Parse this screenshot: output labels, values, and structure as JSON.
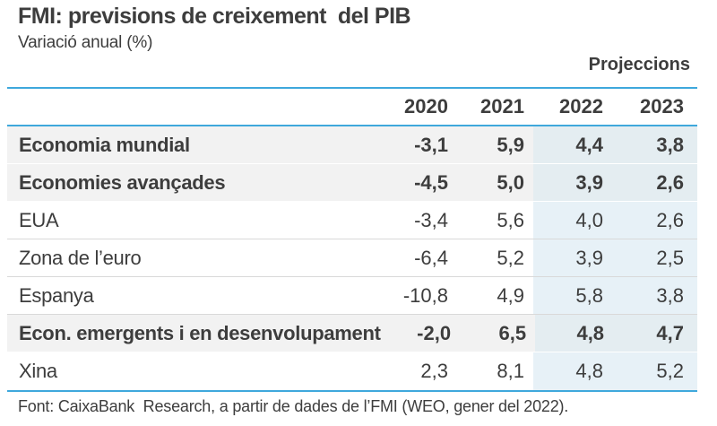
{
  "header": {
    "title": "FMI: previsions de creixement  del PIB",
    "subtitle": "Variació anual (%)",
    "projections_label": "Projeccions"
  },
  "table": {
    "year_columns": [
      "2020",
      "2021",
      "2022",
      "2023"
    ],
    "projection_columns": [
      "2022",
      "2023"
    ],
    "rows": [
      {
        "label": "Economia mundial",
        "bold": true,
        "values": [
          "-3,1",
          "5,9",
          "4,4",
          "3,8"
        ]
      },
      {
        "label": "Economies avançades",
        "bold": true,
        "values": [
          "-4,5",
          "5,0",
          "3,9",
          "2,6"
        ]
      },
      {
        "label": "EUA",
        "bold": false,
        "values": [
          "-3,4",
          "5,6",
          "4,0",
          "2,6"
        ]
      },
      {
        "label": "Zona de l’euro",
        "bold": false,
        "values": [
          "-6,4",
          "5,2",
          "3,9",
          "2,5"
        ]
      },
      {
        "label": "Espanya",
        "bold": false,
        "values": [
          "-10,8",
          "4,9",
          "5,8",
          "3,8"
        ]
      },
      {
        "label": "Econ. emergents i en desenvolupament",
        "bold": true,
        "values": [
          "-2,0",
          "6,5",
          "4,8",
          "4,7"
        ]
      },
      {
        "label": "Xina",
        "bold": false,
        "values": [
          "2,3",
          "8,1",
          "4,8",
          "5,2"
        ]
      }
    ]
  },
  "footer": {
    "source": "Font: CaixaBank  Research, a partir de dades de l’FMI (WEO, gener del 2022)."
  },
  "colors": {
    "accent_blue": "#3fa8dc",
    "highlight_blue": "#e7f1f7",
    "highlight_blue_on_gray": "#e4edf1",
    "row_gray": "#f2f2f2",
    "divider_gray": "#d9d9d9",
    "text_dark": "#3d3d3d"
  },
  "chart_data": {
    "type": "table",
    "title": "FMI: previsions de creixement del PIB",
    "subtitle": "Variació anual (%)",
    "unit": "percent annual variation",
    "columns": [
      "2020",
      "2021",
      "2022",
      "2023"
    ],
    "projection_columns": [
      "2022",
      "2023"
    ],
    "row_labels": [
      "Economia mundial",
      "Economies avançades",
      "EUA",
      "Zona de l’euro",
      "Espanya",
      "Econ. emergents i en desenvolupament",
      "Xina"
    ],
    "values": [
      [
        -3.1,
        5.9,
        4.4,
        3.8
      ],
      [
        -4.5,
        5.0,
        3.9,
        2.6
      ],
      [
        -3.4,
        5.6,
        4.0,
        2.6
      ],
      [
        -6.4,
        5.2,
        3.9,
        2.5
      ],
      [
        -10.8,
        4.9,
        5.8,
        3.8
      ],
      [
        -2.0,
        6.5,
        4.8,
        4.7
      ],
      [
        2.3,
        8.1,
        4.8,
        5.2
      ]
    ],
    "emphasized_rows": [
      "Economia mundial",
      "Economies avançades",
      "Econ. emergents i en desenvolupament"
    ],
    "source": "Font: CaixaBank Research, a partir de dades de l’FMI (WEO, gener del 2022)."
  }
}
